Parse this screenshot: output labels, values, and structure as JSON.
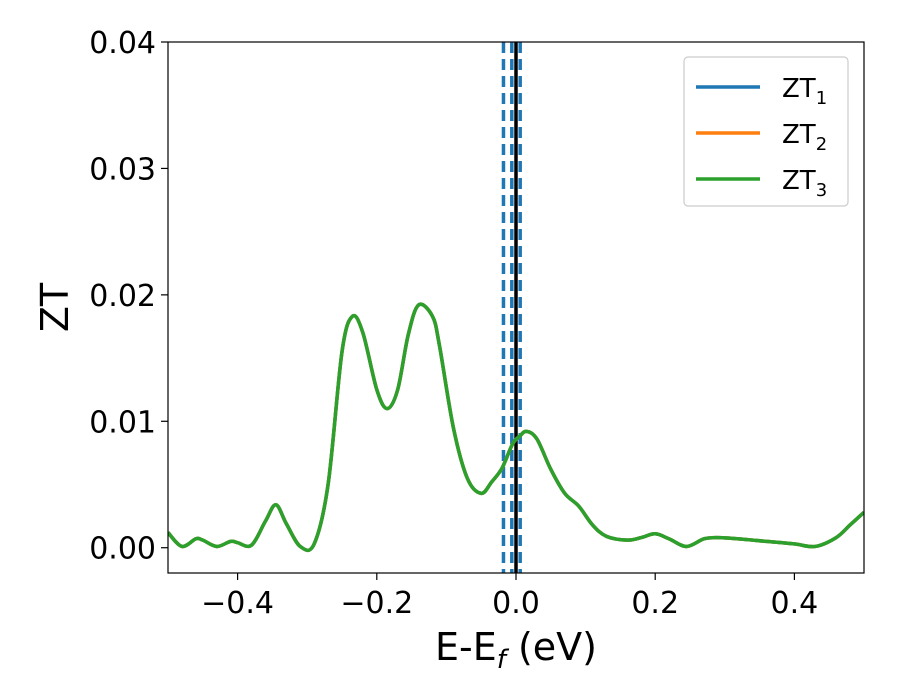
{
  "chart_data": {
    "type": "line",
    "xlabel_main": "E-E",
    "xlabel_sub": "f",
    "xlabel_unit": " (eV)",
    "ylabel": "ZT",
    "xlim": [
      -0.5,
      0.5
    ],
    "ylim": [
      -0.002,
      0.04
    ],
    "x_ticks": [
      -0.4,
      -0.2,
      0.0,
      0.2,
      0.4
    ],
    "x_tick_labels": [
      "−0.4",
      "−0.2",
      "0.0",
      "0.2",
      "0.4"
    ],
    "y_ticks": [
      0.0,
      0.01,
      0.02,
      0.03,
      0.04
    ],
    "y_tick_labels": [
      "0.00",
      "0.01",
      "0.02",
      "0.03",
      "0.04"
    ],
    "grid": false,
    "legend_position": "top-right",
    "series": [
      {
        "name": "ZT",
        "subscript": "1",
        "color": "#1f77b4"
      },
      {
        "name": "ZT",
        "subscript": "2",
        "color": "#ff7f0e"
      },
      {
        "name": "ZT",
        "subscript": "3",
        "color": "#2ca02c"
      }
    ],
    "curve": {
      "x": [
        -0.5,
        -0.48,
        -0.46,
        -0.45,
        -0.43,
        -0.41,
        -0.4,
        -0.38,
        -0.36,
        -0.345,
        -0.33,
        -0.31,
        -0.29,
        -0.27,
        -0.25,
        -0.235,
        -0.22,
        -0.2,
        -0.185,
        -0.17,
        -0.155,
        -0.14,
        -0.12,
        -0.11,
        -0.09,
        -0.07,
        -0.05,
        -0.035,
        -0.02,
        -0.005,
        0.005,
        0.015,
        0.03,
        0.05,
        0.07,
        0.09,
        0.11,
        0.13,
        0.16,
        0.18,
        0.2,
        0.22,
        0.245,
        0.27,
        0.29,
        0.32,
        0.36,
        0.4,
        0.43,
        0.46,
        0.48,
        0.5
      ],
      "y": [
        0.0012,
        0.0001,
        0.0007,
        0.0006,
        0.0001,
        0.0005,
        0.0004,
        0.0002,
        0.0021,
        0.0034,
        0.0019,
        0.0001,
        0.0003,
        0.005,
        0.0155,
        0.0183,
        0.017,
        0.0125,
        0.011,
        0.0125,
        0.0168,
        0.0192,
        0.0183,
        0.016,
        0.0095,
        0.0055,
        0.0043,
        0.0052,
        0.0063,
        0.0082,
        0.0088,
        0.0092,
        0.0086,
        0.0062,
        0.0043,
        0.0033,
        0.0018,
        0.0009,
        0.0006,
        0.0008,
        0.0011,
        0.0007,
        0.0001,
        0.0007,
        0.0008,
        0.0007,
        0.0005,
        0.0003,
        0.0001,
        0.0008,
        0.0018,
        0.0028
      ]
    },
    "vlines": [
      {
        "x": -0.018,
        "style": "dashed",
        "color": "#1f77b4"
      },
      {
        "x": -0.006,
        "style": "dashed",
        "color": "#1f77b4"
      },
      {
        "x": 0.006,
        "style": "dashed",
        "color": "#1f77b4"
      },
      {
        "x": 0.0,
        "style": "solid",
        "color": "#000000"
      }
    ]
  }
}
